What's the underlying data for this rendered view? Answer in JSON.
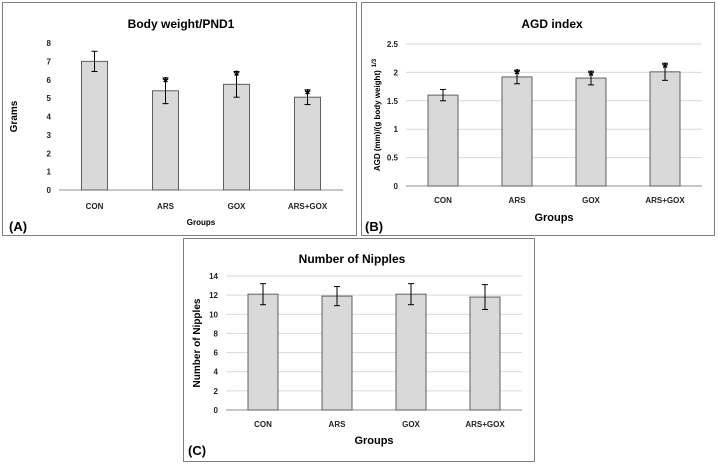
{
  "chart_data": [
    {
      "id": "A",
      "type": "bar",
      "title": "Body weight/PND1",
      "panel_label": "(A)",
      "categories": [
        "CON",
        "ARS",
        "GOX",
        "ARS+GOX"
      ],
      "values": [
        7.0,
        5.4,
        5.75,
        5.05
      ],
      "errors": [
        0.55,
        0.7,
        0.7,
        0.4
      ],
      "significance": [
        "",
        "*",
        "*",
        "*"
      ],
      "xlabel": "Groups",
      "ylabel": "Grams",
      "ylim": [
        0,
        8
      ],
      "yticks": [
        "0",
        "1",
        "2",
        "3",
        "4",
        "5",
        "6",
        "7",
        "8"
      ],
      "ytick_values": [
        0,
        1,
        2,
        3,
        4,
        5,
        6,
        7,
        8
      ]
    },
    {
      "id": "B",
      "type": "bar",
      "title": "AGD index",
      "panel_label": "(B)",
      "categories": [
        "CON",
        "ARS",
        "GOX",
        "ARS+GOX"
      ],
      "values": [
        1.6,
        1.92,
        1.9,
        2.01
      ],
      "errors": [
        0.1,
        0.12,
        0.12,
        0.15
      ],
      "significance": [
        "",
        "*",
        "*",
        "*"
      ],
      "xlabel": "Groups",
      "ylabel": "AGD (mm)/(g body weight)",
      "ylabel_superscript": "1/3",
      "ylim": [
        0,
        2.5
      ],
      "yticks": [
        "0",
        "0.5",
        "1",
        "1.5",
        "2",
        "2.5"
      ],
      "ytick_values": [
        0,
        0.5,
        1,
        1.5,
        2,
        2.5
      ]
    },
    {
      "id": "C",
      "type": "bar",
      "title": "Number of Nipples",
      "panel_label": "(C)",
      "categories": [
        "CON",
        "ARS",
        "GOX",
        "ARS+GOX"
      ],
      "values": [
        12.1,
        11.9,
        12.1,
        11.8
      ],
      "errors": [
        1.1,
        1.0,
        1.1,
        1.3
      ],
      "significance": [
        "",
        "",
        "",
        ""
      ],
      "xlabel": "Groups",
      "ylabel": "Number of Nipples",
      "ylim": [
        0,
        14
      ],
      "yticks": [
        "0",
        "2",
        "4",
        "6",
        "8",
        "10",
        "12",
        "14"
      ],
      "ytick_values": [
        0,
        2,
        4,
        6,
        8,
        10,
        12,
        14
      ]
    }
  ],
  "colors": {
    "bar_fill": "#d9d9d9",
    "bar_stroke": "#5f5f5f",
    "grid": "#d9d9d9",
    "axis": "#8c8c8c",
    "text": "#000000"
  }
}
